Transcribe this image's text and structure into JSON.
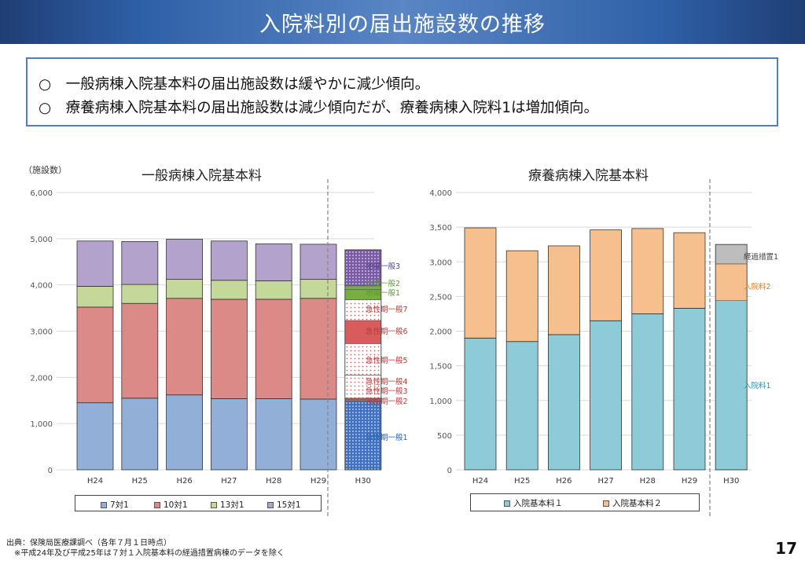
{
  "header": {
    "title": "入院料別の届出施設数の推移"
  },
  "summary": {
    "line1": "○　一般病棟入院基本料の届出施設数は緩やかに減少傾向。",
    "line2": "○　療養病棟入院基本料の届出施設数は減少傾向だが、療養病棟入院料1は増加傾向。"
  },
  "unit_label": "（施設数）",
  "footer": {
    "source": "出典：保険局医療課調べ（各年７月１日時点）",
    "note": "※平成24年及び平成25年は７対１入院基本料の経過措置病棟のデータを除く",
    "page": "17"
  },
  "colors": {
    "c7": "#92afd8",
    "c10": "#dc8a88",
    "c13": "#c4d89a",
    "c15": "#b2a2cc",
    "kyu1": "#3f73c0",
    "kyu_pink": "#d95c5c",
    "chiiki3": "#7b5aa8",
    "chiiki_green": "#77ae40",
    "ryo1": "#8ecbd9",
    "ryo2": "#f6bf8e",
    "keika": "#bdbdbd",
    "lbl_blue": "#2b61ad",
    "lbl_red": "#b33b3b",
    "lbl_green": "#5d9a35",
    "lbl_purple": "#5b3f8f",
    "lbl_orange": "#e37a1d",
    "lbl_teal": "#2b8fb0",
    "lbl_gray": "#444444"
  },
  "chart_data": [
    {
      "type": "bar",
      "stacked": true,
      "title": "一般病棟入院基本料",
      "categories": [
        "H24",
        "H25",
        "H26",
        "H27",
        "H28",
        "H29"
      ],
      "series": [
        {
          "name": "7対1",
          "values": [
            1450,
            1550,
            1620,
            1540,
            1540,
            1530
          ]
        },
        {
          "name": "10対1",
          "values": [
            2070,
            2050,
            2090,
            2150,
            2150,
            2180
          ]
        },
        {
          "name": "13対1",
          "values": [
            450,
            410,
            410,
            410,
            400,
            410
          ]
        },
        {
          "name": "15対1",
          "values": [
            980,
            930,
            870,
            850,
            800,
            760
          ]
        }
      ],
      "h30": {
        "category": "H30",
        "segments": [
          {
            "name": "急性期一般1",
            "value": 1490,
            "color_key": "kyu1",
            "pattern": "dots"
          },
          {
            "name": "急性期一般2",
            "value": 40,
            "color_key": "kyu_pink",
            "pattern": "solid"
          },
          {
            "name": "急性期一般3",
            "value": 20,
            "color_key": "kyu_pink",
            "pattern": "solid"
          },
          {
            "name": "急性期一般4",
            "value": 500,
            "color_key": "kyu_pink",
            "pattern": "dots"
          },
          {
            "name": "急性期一般5",
            "value": 680,
            "color_key": "kyu_pink",
            "pattern": "dots"
          },
          {
            "name": "急性期一般6",
            "value": 500,
            "color_key": "kyu_pink",
            "pattern": "solid"
          },
          {
            "name": "急性期一般7",
            "value": 450,
            "color_key": "kyu_pink",
            "pattern": "dots"
          },
          {
            "name": "地域一般1",
            "value": 220,
            "color_key": "chiiki_green",
            "pattern": "solid"
          },
          {
            "name": "地域一般2",
            "value": 80,
            "color_key": "chiiki_green",
            "pattern": "solid"
          },
          {
            "name": "地域一般3",
            "value": 780,
            "color_key": "chiiki3",
            "pattern": "dots"
          }
        ]
      },
      "ylim": [
        0,
        6000
      ],
      "yticks": [
        "0",
        "1,000",
        "2,000",
        "3,000",
        "4,000",
        "5,000",
        "6,000"
      ],
      "legend": [
        "7対1",
        "10対1",
        "13対1",
        "15対1"
      ]
    },
    {
      "type": "bar",
      "stacked": true,
      "title": "療養病棟入院基本料",
      "categories": [
        "H24",
        "H25",
        "H26",
        "H27",
        "H28",
        "H29"
      ],
      "series": [
        {
          "name": "入院基本料１",
          "values": [
            1900,
            1850,
            1950,
            2150,
            2250,
            2330
          ]
        },
        {
          "name": "入院基本料２",
          "values": [
            1590,
            1310,
            1280,
            1310,
            1230,
            1090
          ]
        }
      ],
      "h30": {
        "category": "H30",
        "segments": [
          {
            "name": "入院料1",
            "value": 2440,
            "color_key": "ryo1",
            "pattern": "solid"
          },
          {
            "name": "入院料2",
            "value": 530,
            "color_key": "ryo2",
            "pattern": "solid"
          },
          {
            "name": "経過措置1",
            "value": 280,
            "color_key": "keika",
            "pattern": "solid"
          }
        ]
      },
      "ylim": [
        0,
        4000
      ],
      "yticks": [
        "0",
        "500",
        "1,000",
        "1,500",
        "2,000",
        "2,500",
        "3,000",
        "3,500",
        "4,000"
      ],
      "legend": [
        "入院基本料１",
        "入院基本料２"
      ]
    }
  ]
}
